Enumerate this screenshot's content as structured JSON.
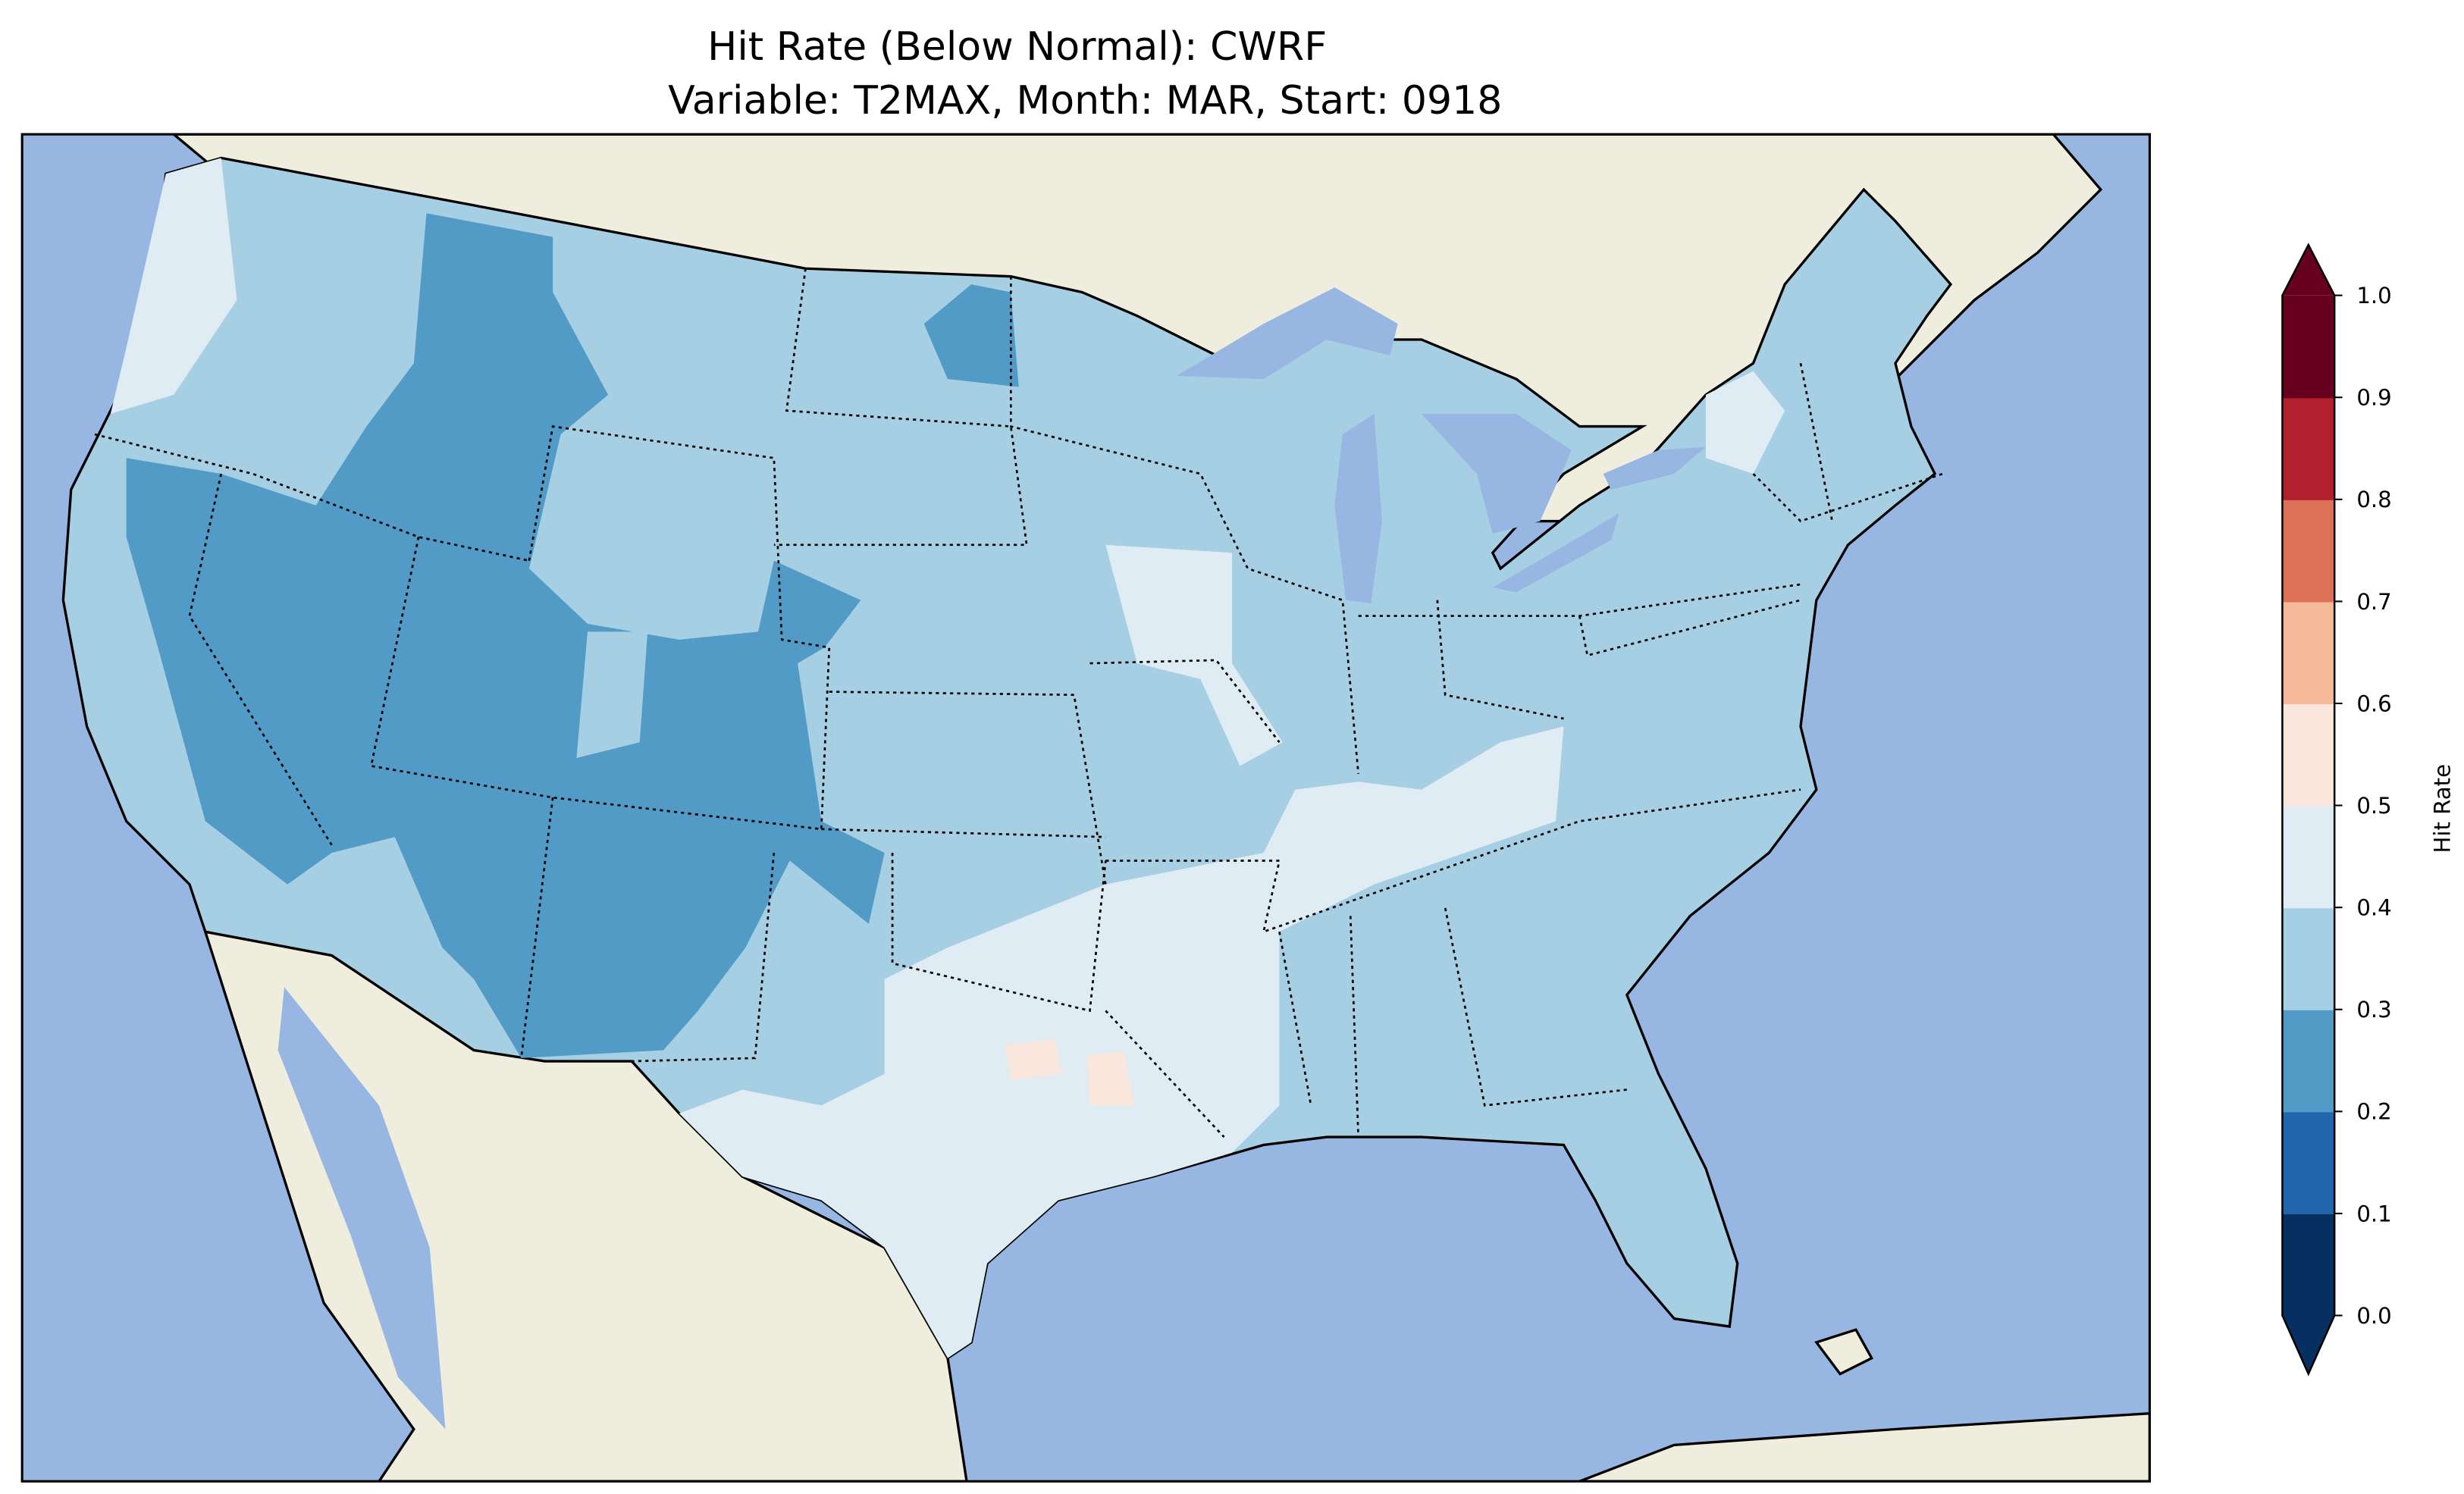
{
  "title": {
    "line1": "Hit Rate (Below Normal): CWRF",
    "line2": "Variable: T2MAX, Month: MAR, Start: 0918"
  },
  "map": {
    "ocean_color": "#97b6e1",
    "land_color": "#efedde",
    "dominant_category": "0.3-0.4",
    "regions": [
      {
        "name": "interior-west",
        "range": "0.2-0.3",
        "color": "#529bc6"
      },
      {
        "name": "plains-east",
        "range": "0.3-0.4",
        "color": "#a7cfe3"
      },
      {
        "name": "south-central",
        "range": "0.4-0.5",
        "color": "#e0ecf3"
      },
      {
        "name": "texas-patches",
        "range": "0.5-0.6",
        "color": "#f9e6dd"
      }
    ]
  },
  "colorbar": {
    "label": "Hit Rate",
    "ticks": [
      "0.0",
      "0.1",
      "0.2",
      "0.3",
      "0.4",
      "0.5",
      "0.6",
      "0.7",
      "0.8",
      "0.9",
      "1.0"
    ],
    "colors": [
      "#053061",
      "#2166ac",
      "#529bc6",
      "#a7cfe3",
      "#e0ecf3",
      "#f9e6dd",
      "#f5b898",
      "#dd7158",
      "#b2202e",
      "#67001f"
    ],
    "extend": "both"
  }
}
